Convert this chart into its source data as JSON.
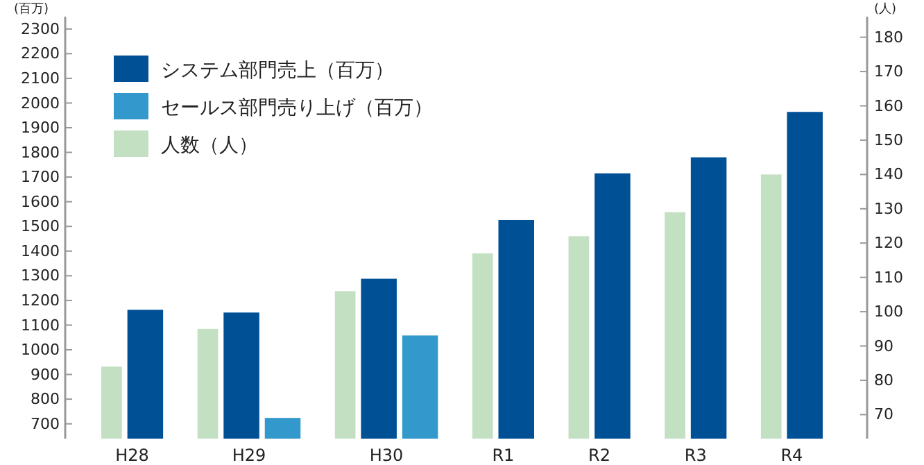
{
  "chart_data": {
    "type": "bar",
    "ylabel": "(百万)",
    "y2label": "(人)",
    "categories": [
      "H28",
      "H29",
      "H30",
      "R1",
      "R2",
      "R3",
      "R4"
    ],
    "series": [
      {
        "name": "人数（人）",
        "color": "#c3e0c3",
        "axis": "y2",
        "values": [
          84,
          95,
          106,
          117,
          122,
          129,
          140
        ]
      },
      {
        "name": "システム部門売上（百万）",
        "color": "#005096",
        "values": [
          1162,
          1151,
          1288,
          1526,
          1715,
          1780,
          1964
        ]
      },
      {
        "name": "セールス部門売り上げ（百万）",
        "color": "#3399cc",
        "values": [
          null,
          724,
          1058,
          null,
          null,
          null,
          null
        ]
      }
    ],
    "ylim": [
      640,
      2350
    ],
    "yticks": [
      700,
      800,
      900,
      1000,
      1100,
      1200,
      1300,
      1400,
      1500,
      1600,
      1700,
      1800,
      1900,
      2000,
      2100,
      2200,
      2300
    ],
    "y2lim": [
      63,
      186
    ],
    "y2ticks": [
      70,
      80,
      90,
      100,
      110,
      120,
      130,
      140,
      150,
      160,
      170,
      180
    ],
    "legend": "top left",
    "grid": false
  }
}
